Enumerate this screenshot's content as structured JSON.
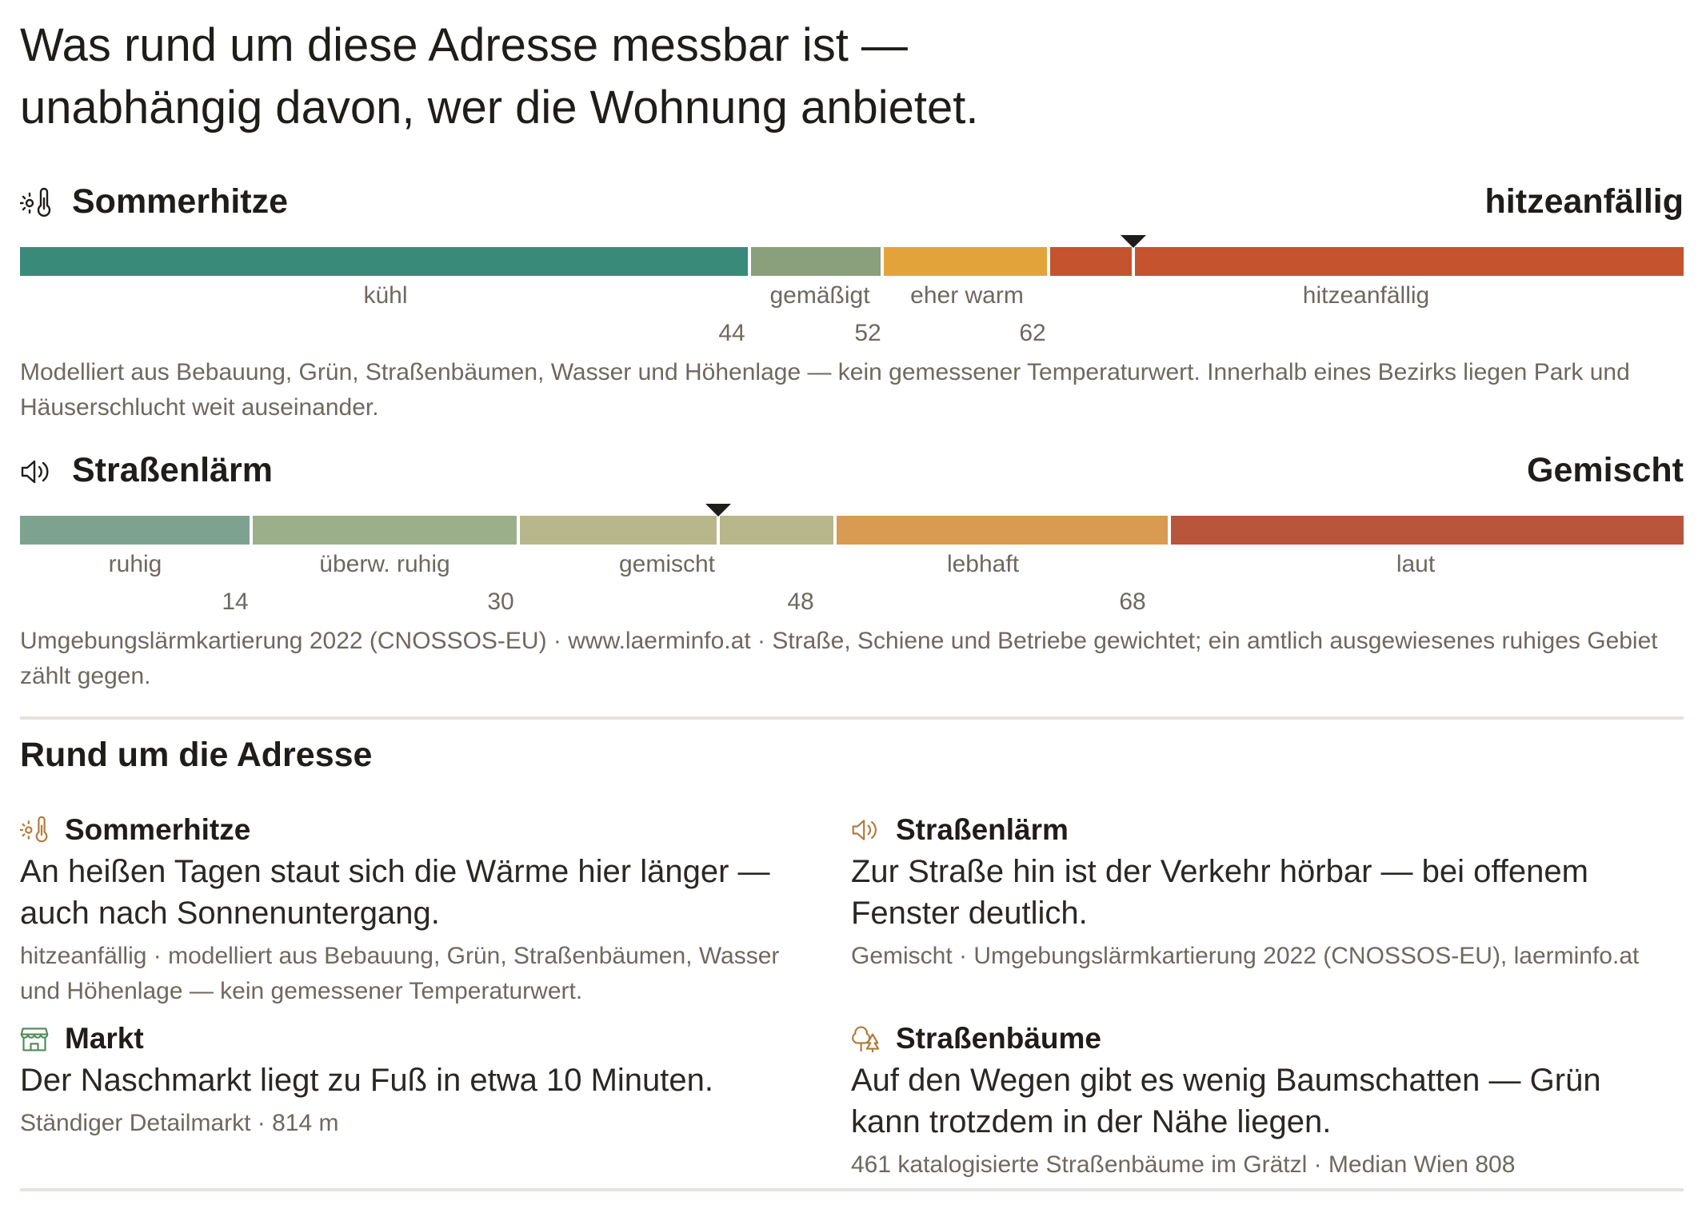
{
  "headline": {
    "line1": "Was rund um diese Adresse messbar ist —",
    "line2": "unabhängig davon, wer die Wohnung anbietet."
  },
  "heat": {
    "icon": "thermometer-sun-icon",
    "title": "Sommerhitze",
    "verdict": "hitzeanfällig",
    "segments": [
      "kühl",
      "gemäßigt",
      "eher warm",
      "hitzeanfällig"
    ],
    "colors": [
      "#3a8a7a",
      "#8aa07c",
      "#e2a43a",
      "#c4532e"
    ],
    "ticks": [
      "44",
      "52",
      "62"
    ],
    "marker_value": 67,
    "note": "Modelliert aus Bebauung, Grün, Straßenbäumen, Wasser und Höhenlage — kein gemessener Temperaturwert. Innerhalb eines Bezirks liegen Park und Häuserschlucht weit auseinander."
  },
  "noise": {
    "icon": "speaker-icon",
    "title": "Straßenlärm",
    "verdict": "Gemischt",
    "segments": [
      "ruhig",
      "überw. ruhig",
      "gemischt",
      "lebhaft",
      "laut"
    ],
    "colors": [
      "#7da390",
      "#9bb08a",
      "#b8b78c",
      "#d99a52",
      "#b9553a"
    ],
    "ticks": [
      "14",
      "30",
      "48",
      "68"
    ],
    "marker_value": 42,
    "note": "Umgebungslärmkartierung 2022 (CNOSSOS-EU) · www.laerminfo.at · Straße, Schiene und Betriebe gewichtet; ein amtlich ausgewiesenes ruhiges Gebiet zählt gegen."
  },
  "section": {
    "title": "Rund um die Adresse"
  },
  "cards": [
    {
      "icon": "thermometer-sun-icon",
      "title": "Sommerhitze",
      "text": "An heißen Tagen staut sich die Wärme hier länger — auch nach Sonnenuntergang.",
      "meta": "hitzeanfällig · modelliert aus Bebauung, Grün, Straßenbäumen, Wasser und Höhenlage — kein gemessener Temperaturwert."
    },
    {
      "icon": "speaker-icon",
      "title": "Straßenlärm",
      "text": "Zur Straße hin ist der Verkehr hörbar — bei offenem Fenster deutlich.",
      "meta": "Gemischt · Umgebungslärmkartierung 2022 (CNOSSOS-EU), laerminfo.at"
    },
    {
      "icon": "market-stall-icon",
      "title": "Markt",
      "text": "Der Naschmarkt liegt zu Fuß in etwa 10 Minuten.",
      "meta": "Ständiger Detailmarkt · 814 m"
    },
    {
      "icon": "trees-icon",
      "title": "Straßenbäume",
      "text": "Auf den Wegen gibt es wenig Baumschatten — Grün kann trotzdem in der Nähe liegen.",
      "meta": "461 katalogisierte Straßenbäume im Grätzl · Median Wien 808"
    }
  ]
}
